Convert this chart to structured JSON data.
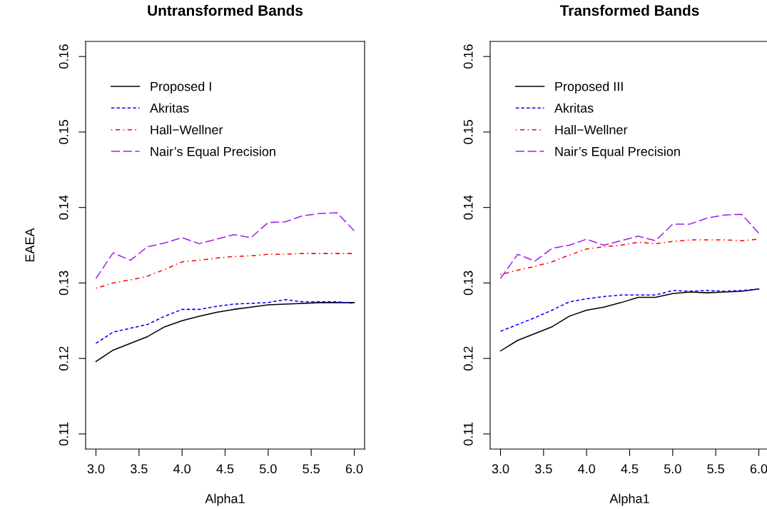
{
  "chart_data": [
    {
      "type": "line",
      "title": "Untransformed Bands",
      "xlabel": "Alpha1",
      "ylabel": "EAEA",
      "legend": "top left",
      "grid": false,
      "x": [
        3.0,
        3.2,
        3.4,
        3.6,
        3.8,
        4.0,
        4.2,
        4.4,
        4.6,
        4.8,
        5.0,
        5.2,
        5.4,
        5.6,
        5.8,
        6.0
      ],
      "xlim": [
        2.88,
        6.12
      ],
      "ylim": [
        0.108,
        0.162
      ],
      "xticks": [
        {
          "value": 3.0,
          "label": "3.0"
        },
        {
          "value": 3.5,
          "label": "3.5"
        },
        {
          "value": 4.0,
          "label": "4.0"
        },
        {
          "value": 4.5,
          "label": "4.5"
        },
        {
          "value": 5.0,
          "label": "5.0"
        },
        {
          "value": 5.5,
          "label": "5.5"
        },
        {
          "value": 6.0,
          "label": "6.0"
        }
      ],
      "yticks": [
        0.11,
        0.12,
        0.13,
        0.14,
        0.15,
        0.16
      ],
      "series": [
        {
          "name": "Proposed I",
          "color": "#000000",
          "line_style": "solid",
          "values": [
            0.1196,
            0.1211,
            0.122,
            0.1229,
            0.1242,
            0.125,
            0.1256,
            0.1261,
            0.1265,
            0.1268,
            0.1271,
            0.1272,
            0.1273,
            0.1274,
            0.1274,
            0.1274
          ]
        },
        {
          "name": "Akritas",
          "color": "#0000ff",
          "line_style": "dashed",
          "values": [
            0.122,
            0.1235,
            0.124,
            0.1245,
            0.1256,
            0.1265,
            0.1265,
            0.1269,
            0.1272,
            0.1273,
            0.1274,
            0.1278,
            0.1275,
            0.1275,
            0.1275,
            0.1273
          ]
        },
        {
          "name": "Hall−Wellner",
          "color": "#ff0000",
          "line_style": "dashdot",
          "values": [
            0.1293,
            0.13,
            0.1304,
            0.1309,
            0.1318,
            0.1328,
            0.133,
            0.1333,
            0.1335,
            0.1336,
            0.1338,
            0.1338,
            0.1339,
            0.1339,
            0.1339,
            0.1339
          ]
        },
        {
          "name": "Nair’s Equal Precision",
          "color": "#a020f0",
          "line_style": "longdash",
          "values": [
            0.1306,
            0.134,
            0.133,
            0.1348,
            0.1353,
            0.136,
            0.1352,
            0.1358,
            0.1364,
            0.136,
            0.138,
            0.1381,
            0.1389,
            0.1392,
            0.1393,
            0.1369
          ]
        }
      ]
    },
    {
      "type": "line",
      "title": "Transformed Bands",
      "xlabel": "Alpha1",
      "legend": "top left",
      "grid": false,
      "x": [
        3.0,
        3.2,
        3.4,
        3.6,
        3.8,
        4.0,
        4.2,
        4.4,
        4.6,
        4.8,
        5.0,
        5.2,
        5.4,
        5.6,
        5.8,
        6.0
      ],
      "xlim": [
        2.88,
        6.12
      ],
      "ylim": [
        0.108,
        0.162
      ],
      "xticks": [
        {
          "value": 3.0,
          "label": "3.0"
        },
        {
          "value": 3.5,
          "label": "3.5"
        },
        {
          "value": 4.0,
          "label": "4.0"
        },
        {
          "value": 4.5,
          "label": "4.5"
        },
        {
          "value": 5.0,
          "label": "5.0"
        },
        {
          "value": 5.5,
          "label": "5.5"
        },
        {
          "value": 6.0,
          "label": "6.0"
        }
      ],
      "yticks": [
        0.11,
        0.12,
        0.13,
        0.14,
        0.15,
        0.16
      ],
      "series": [
        {
          "name": "Proposed III",
          "color": "#000000",
          "line_style": "solid",
          "values": [
            0.121,
            0.1224,
            0.1233,
            0.1242,
            0.1256,
            0.1264,
            0.1268,
            0.1274,
            0.1281,
            0.1281,
            0.1286,
            0.1288,
            0.1287,
            0.1288,
            0.1289,
            0.1292
          ]
        },
        {
          "name": "Akritas",
          "color": "#0000ff",
          "line_style": "dashed",
          "values": [
            0.1236,
            0.1245,
            0.1254,
            0.1264,
            0.1275,
            0.1279,
            0.1282,
            0.1284,
            0.1284,
            0.1284,
            0.129,
            0.1289,
            0.129,
            0.1289,
            0.129,
            0.1292
          ]
        },
        {
          "name": "Hall−Wellner",
          "color": "#ff0000",
          "line_style": "dashdot",
          "values": [
            0.1311,
            0.1317,
            0.1322,
            0.1328,
            0.1337,
            0.1345,
            0.1348,
            0.135,
            0.1354,
            0.1352,
            0.1355,
            0.1357,
            0.1357,
            0.1357,
            0.1356,
            0.1358
          ]
        },
        {
          "name": "Nair’s Equal Precision",
          "color": "#a020f0",
          "line_style": "longdash",
          "values": [
            0.1306,
            0.1338,
            0.1329,
            0.1346,
            0.135,
            0.1358,
            0.135,
            0.1356,
            0.1362,
            0.1356,
            0.1378,
            0.1378,
            0.1386,
            0.139,
            0.1391,
            0.1366
          ]
        }
      ]
    }
  ]
}
